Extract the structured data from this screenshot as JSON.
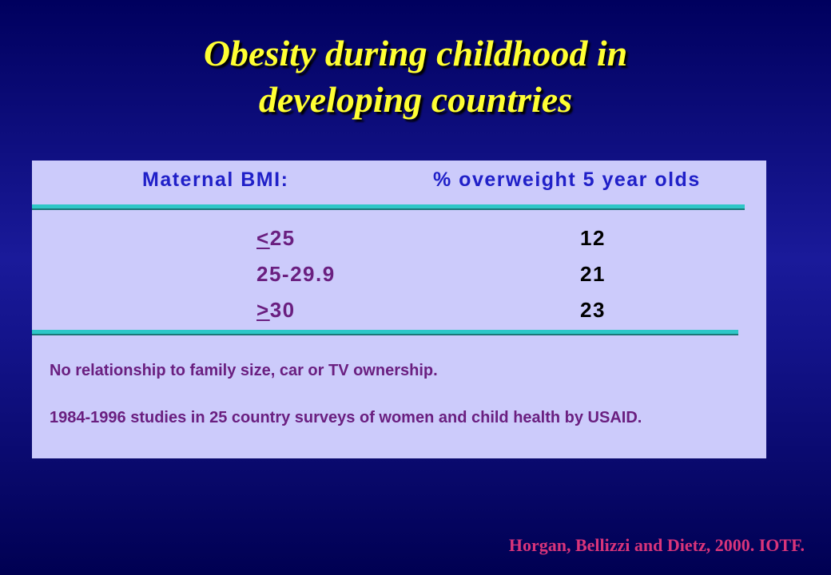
{
  "slide": {
    "title_line1": "Obesity during childhood in",
    "title_line2": "developing countries",
    "citation": "Horgan, Bellizzi and Dietz, 2000. IOTF."
  },
  "table": {
    "header_left": "Maternal BMI:",
    "header_right": "% overweight 5 year olds",
    "rows": [
      {
        "bmi_prefix": "<",
        "bmi_rest": "25",
        "percent": "12"
      },
      {
        "bmi_prefix": "",
        "bmi_rest": "25-29.9",
        "percent": "21"
      },
      {
        "bmi_prefix": ">",
        "bmi_rest": "30",
        "percent": "23"
      }
    ],
    "note1": "No relationship to family size, car or TV ownership.",
    "note2": "1984-1996 studies in 25 country surveys of women and child health by USAID."
  },
  "colors": {
    "background": "#1a1a9a",
    "title": "#ffff33",
    "table_background": "#cccbfb",
    "header_text": "#2020c8",
    "bmi_text": "#6a1f80",
    "rule": "#2dc7c7",
    "citation": "#d9347a"
  }
}
